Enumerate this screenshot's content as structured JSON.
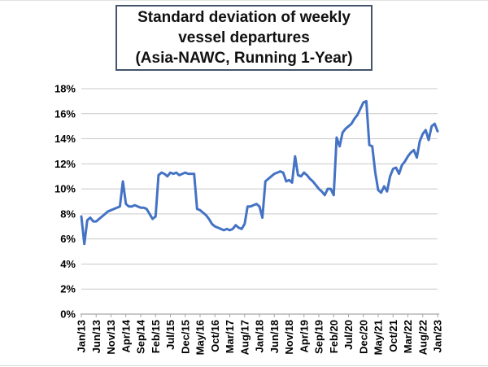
{
  "title": {
    "line1": "Standard deviation of weekly",
    "line2": "vessel departures",
    "line3": "(Asia-NAWC, Running 1-Year)"
  },
  "chart_data": {
    "type": "line",
    "title": "Standard deviation of weekly vessel departures (Asia-NAWC, Running 1-Year)",
    "xlabel": "",
    "ylabel": "",
    "y_unit": "percent",
    "ylim": [
      0,
      18
    ],
    "y_tick_step": 2,
    "y_tick_labels": [
      "0%",
      "2%",
      "4%",
      "6%",
      "8%",
      "10%",
      "12%",
      "14%",
      "16%",
      "18%"
    ],
    "x_tick_labels": [
      "Jan/13",
      "Jun/13",
      "Nov/13",
      "Apr/14",
      "Sep/14",
      "Feb/15",
      "Jul/15",
      "Dec/15",
      "May/16",
      "Oct/16",
      "Mar/17",
      "Aug/17",
      "Jan/18",
      "Jun/18",
      "Nov/18",
      "Apr/19",
      "Sep/19",
      "Feb/20",
      "Jul/20",
      "Dec/20",
      "May/21",
      "Oct/21",
      "Mar/22",
      "Aug/22",
      "Jan/23"
    ],
    "x_tick_every_n_months": 5,
    "grid": "horizontal",
    "legend": false,
    "series": [
      {
        "name": "Std dev of weekly vessel departures",
        "start_month": "Jan/13",
        "end_month": "Jan/23",
        "monthly_values_pct": [
          7.8,
          5.6,
          7.5,
          7.7,
          7.4,
          7.4,
          7.6,
          7.8,
          8.0,
          8.2,
          8.3,
          8.4,
          8.5,
          8.6,
          10.6,
          8.8,
          8.6,
          8.6,
          8.7,
          8.6,
          8.5,
          8.5,
          8.4,
          8.0,
          7.6,
          7.8,
          11.1,
          11.3,
          11.2,
          11.0,
          11.3,
          11.2,
          11.3,
          11.1,
          11.2,
          11.3,
          11.2,
          11.2,
          11.2,
          8.4,
          8.3,
          8.1,
          7.9,
          7.6,
          7.2,
          7.0,
          6.9,
          6.8,
          6.7,
          6.8,
          6.7,
          6.8,
          7.1,
          6.9,
          6.8,
          7.2,
          8.6,
          8.6,
          8.7,
          8.8,
          8.6,
          7.7,
          10.6,
          10.8,
          11.0,
          11.2,
          11.3,
          11.4,
          11.3,
          10.6,
          10.7,
          10.5,
          12.6,
          11.1,
          11.0,
          11.3,
          11.1,
          10.8,
          10.6,
          10.3,
          10.0,
          9.8,
          9.5,
          10.0,
          10.0,
          9.5,
          14.1,
          13.4,
          14.5,
          14.8,
          15.0,
          15.2,
          15.6,
          15.9,
          16.4,
          16.9,
          17.0,
          13.5,
          13.4,
          11.3,
          9.9,
          9.7,
          10.2,
          9.8,
          11.0,
          11.6,
          11.7,
          11.2,
          11.9,
          12.2,
          12.6,
          12.9,
          13.1,
          12.5,
          13.8,
          14.4,
          14.7,
          13.9,
          15.0,
          15.2,
          14.6
        ]
      }
    ],
    "colors": {
      "line": "#4472C4",
      "grid": "#C9C9C9",
      "axis": "#A6A6A6",
      "text": "#000000",
      "title_border": "#44546A"
    }
  }
}
